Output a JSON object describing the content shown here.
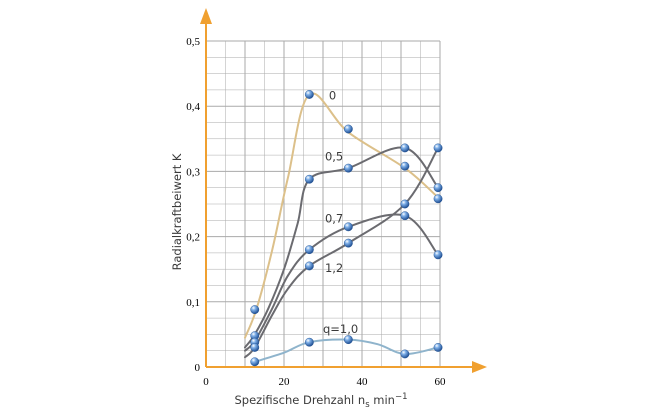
{
  "chart_data": {
    "type": "line",
    "title": "",
    "xlabel": "Spezifische Drehzahl n",
    "xlabel_sub": "s",
    "xlabel_unit": " min",
    "xlabel_sup": "−1",
    "ylabel": "Radialkraftbeiwert K",
    "xlim": [
      0,
      60
    ],
    "ylim": [
      0,
      0.5
    ],
    "x_ticks": [
      0,
      20,
      40,
      60
    ],
    "x_tick_labels": [
      "0",
      "20",
      "40",
      "60"
    ],
    "y_ticks": [
      0,
      0.1,
      0.2,
      0.3,
      0.4,
      0.5
    ],
    "y_tick_labels": [
      "0",
      "0,1",
      "0,2",
      "0,3",
      "0,4",
      "0,5"
    ],
    "grid": true,
    "colors": {
      "grid": "#aaaaaa",
      "axis": "#f0a030",
      "dark": "#6b6b70",
      "tan": "#dcc08a",
      "blue": "#8fb4cc",
      "marker": "#3d6fb0"
    },
    "series": [
      {
        "label": "0",
        "color": "#dcc08a",
        "curve_x": [
          10,
          13,
          17,
          21,
          26.5,
          36.5,
          51,
          59.5
        ],
        "curve_y": [
          0.045,
          0.09,
          0.18,
          0.29,
          0.418,
          0.36,
          0.305,
          0.26
        ],
        "points_x": [
          12.5,
          26.5,
          36.5,
          51,
          59.5
        ],
        "points_y": [
          0.088,
          0.418,
          0.365,
          0.308,
          0.258
        ]
      },
      {
        "label": "0,5",
        "color": "#6b6b70",
        "curve_x": [
          10,
          12.5,
          16,
          20,
          23.5,
          26.5,
          36.5,
          51,
          59.5
        ],
        "curve_y": [
          0.03,
          0.05,
          0.09,
          0.15,
          0.22,
          0.288,
          0.305,
          0.336,
          0.275
        ],
        "points_x": [
          12.5,
          26.5,
          36.5,
          51,
          59.5
        ],
        "points_y": [
          0.048,
          0.288,
          0.305,
          0.336,
          0.275
        ]
      },
      {
        "label": "0,7",
        "color": "#6b6b70",
        "curve_x": [
          10,
          12.5,
          17,
          21,
          26.5,
          36.5,
          51,
          59.5
        ],
        "curve_y": [
          0.025,
          0.04,
          0.09,
          0.14,
          0.18,
          0.215,
          0.232,
          0.172
        ],
        "points_x": [
          12.5,
          26.5,
          36.5,
          51,
          59.5
        ],
        "points_y": [
          0.038,
          0.18,
          0.215,
          0.232,
          0.172
        ]
      },
      {
        "label": "1,2",
        "color": "#6b6b70",
        "curve_x": [
          10,
          12.5,
          17,
          21,
          26.5,
          36.5,
          51,
          59.5
        ],
        "curve_y": [
          0.015,
          0.03,
          0.08,
          0.12,
          0.155,
          0.19,
          0.25,
          0.336
        ],
        "points_x": [
          12.5,
          26.5,
          36.5,
          51,
          59.5
        ],
        "points_y": [
          0.03,
          0.155,
          0.19,
          0.25,
          0.336
        ]
      },
      {
        "label": "q=1,0",
        "color": "#8fb4cc",
        "curve_x": [
          12.5,
          20,
          26.5,
          36.5,
          44,
          51,
          59.5
        ],
        "curve_y": [
          0.008,
          0.022,
          0.038,
          0.042,
          0.035,
          0.02,
          0.03
        ],
        "points_x": [
          12.5,
          26.5,
          36.5,
          51,
          59.5
        ],
        "points_y": [
          0.008,
          0.038,
          0.042,
          0.02,
          0.03
        ]
      }
    ],
    "labels": [
      {
        "text": "0",
        "x": 31.5,
        "y": 0.41
      },
      {
        "text": "0,5",
        "x": 30.5,
        "y": 0.317
      },
      {
        "text": "0,7",
        "x": 30.5,
        "y": 0.222
      },
      {
        "text": "1,2",
        "x": 30.5,
        "y": 0.146
      },
      {
        "text": "q=1,0",
        "x": 30,
        "y": 0.052
      }
    ]
  }
}
